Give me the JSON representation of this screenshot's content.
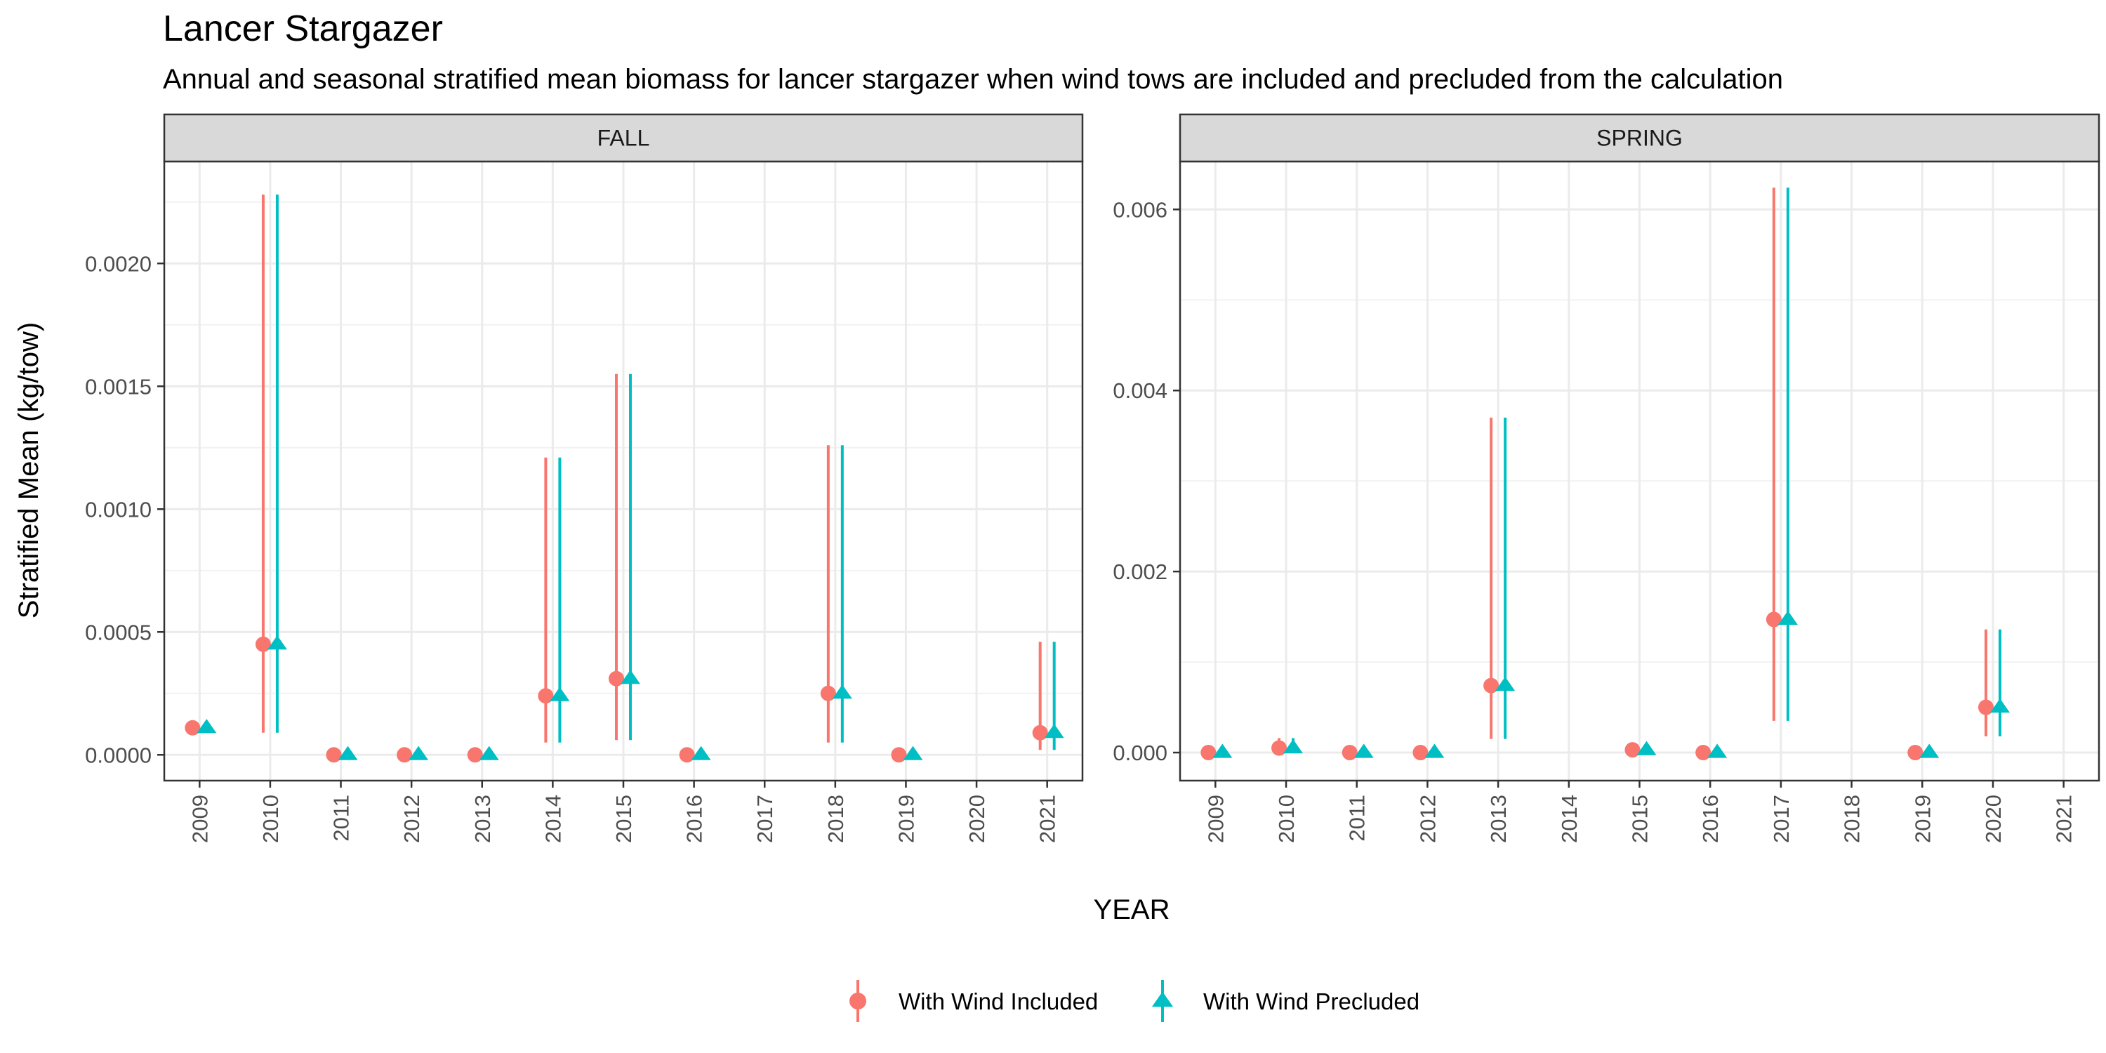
{
  "chart_data": {
    "type": "scatter",
    "title": "Lancer Stargazer",
    "subtitle": "Annual and seasonal stratified mean biomass for lancer stargazer when wind tows are included and precluded from the calculation",
    "xlabel": "YEAR",
    "ylabel": "Stratified Mean (kg/tow)",
    "legend": {
      "position": "bottom",
      "entries": [
        {
          "name": "With Wind Included",
          "color": "#F8766D",
          "shape": "circle"
        },
        {
          "name": "With Wind Precluded",
          "color": "#00BFC4",
          "shape": "triangle"
        }
      ]
    },
    "categories": [
      "2009",
      "2010",
      "2011",
      "2012",
      "2013",
      "2014",
      "2015",
      "2016",
      "2017",
      "2018",
      "2019",
      "2020",
      "2021"
    ],
    "panels": [
      {
        "label": "FALL",
        "ylim": [
          -0.000105,
          0.002415
        ],
        "yticks": [
          0,
          0.0005,
          0.001,
          0.0015,
          0.002
        ],
        "ytick_labels": [
          "0.0000",
          "0.0005",
          "0.0010",
          "0.0015",
          "0.0020"
        ],
        "series": [
          {
            "name": "With Wind Included",
            "points": [
              {
                "year": "2009",
                "value": 0.00011,
                "low": null,
                "high": null
              },
              {
                "year": "2010",
                "value": 0.00045,
                "low": 9e-05,
                "high": 0.00228
              },
              {
                "year": "2011",
                "value": 0.0,
                "low": null,
                "high": null
              },
              {
                "year": "2012",
                "value": 0.0,
                "low": null,
                "high": null
              },
              {
                "year": "2013",
                "value": 0.0,
                "low": null,
                "high": null
              },
              {
                "year": "2014",
                "value": 0.00024,
                "low": 5e-05,
                "high": 0.00121
              },
              {
                "year": "2015",
                "value": 0.00031,
                "low": 6e-05,
                "high": 0.00155
              },
              {
                "year": "2016",
                "value": 0.0,
                "low": null,
                "high": null
              },
              {
                "year": "2018",
                "value": 0.00025,
                "low": 5e-05,
                "high": 0.00126
              },
              {
                "year": "2019",
                "value": 0.0,
                "low": null,
                "high": null
              },
              {
                "year": "2021",
                "value": 9e-05,
                "low": 2e-05,
                "high": 0.00046
              }
            ]
          },
          {
            "name": "With Wind Precluded",
            "points": [
              {
                "year": "2009",
                "value": 0.00011,
                "low": null,
                "high": null
              },
              {
                "year": "2010",
                "value": 0.00045,
                "low": 9e-05,
                "high": 0.00228
              },
              {
                "year": "2011",
                "value": 0.0,
                "low": null,
                "high": null
              },
              {
                "year": "2012",
                "value": 0.0,
                "low": null,
                "high": null
              },
              {
                "year": "2013",
                "value": 0.0,
                "low": null,
                "high": null
              },
              {
                "year": "2014",
                "value": 0.00024,
                "low": 5e-05,
                "high": 0.00121
              },
              {
                "year": "2015",
                "value": 0.00031,
                "low": 6e-05,
                "high": 0.00155
              },
              {
                "year": "2016",
                "value": 0.0,
                "low": null,
                "high": null
              },
              {
                "year": "2018",
                "value": 0.00025,
                "low": 5e-05,
                "high": 0.00126
              },
              {
                "year": "2019",
                "value": 0.0,
                "low": null,
                "high": null
              },
              {
                "year": "2021",
                "value": 9e-05,
                "low": 2e-05,
                "high": 0.00046
              }
            ]
          }
        ]
      },
      {
        "label": "SPRING",
        "ylim": [
          -0.00031,
          0.00653
        ],
        "yticks": [
          0,
          0.002,
          0.004,
          0.006
        ],
        "ytick_labels": [
          "0.000",
          "0.002",
          "0.004",
          "0.006"
        ],
        "series": [
          {
            "name": "With Wind Included",
            "points": [
              {
                "year": "2009",
                "value": 0.0,
                "low": null,
                "high": null
              },
              {
                "year": "2010",
                "value": 5e-05,
                "low": 0.0,
                "high": 0.00016
              },
              {
                "year": "2011",
                "value": 0.0,
                "low": null,
                "high": null
              },
              {
                "year": "2012",
                "value": 0.0,
                "low": null,
                "high": null
              },
              {
                "year": "2013",
                "value": 0.00074,
                "low": 0.00015,
                "high": 0.0037
              },
              {
                "year": "2015",
                "value": 3e-05,
                "low": null,
                "high": null
              },
              {
                "year": "2016",
                "value": 0.0,
                "low": null,
                "high": null
              },
              {
                "year": "2017",
                "value": 0.00147,
                "low": 0.00035,
                "high": 0.00624
              },
              {
                "year": "2019",
                "value": 0.0,
                "low": null,
                "high": null
              },
              {
                "year": "2020",
                "value": 0.0005,
                "low": 0.00018,
                "high": 0.00136
              }
            ]
          },
          {
            "name": "With Wind Precluded",
            "points": [
              {
                "year": "2009",
                "value": 0.0,
                "low": null,
                "high": null
              },
              {
                "year": "2010",
                "value": 5e-05,
                "low": 0.0,
                "high": 0.00016
              },
              {
                "year": "2011",
                "value": 0.0,
                "low": null,
                "high": null
              },
              {
                "year": "2012",
                "value": 0.0,
                "low": null,
                "high": null
              },
              {
                "year": "2013",
                "value": 0.00074,
                "low": 0.00015,
                "high": 0.0037
              },
              {
                "year": "2015",
                "value": 3e-05,
                "low": null,
                "high": null
              },
              {
                "year": "2016",
                "value": 0.0,
                "low": null,
                "high": null
              },
              {
                "year": "2017",
                "value": 0.00147,
                "low": 0.00035,
                "high": 0.00624
              },
              {
                "year": "2019",
                "value": 0.0,
                "low": null,
                "high": null
              },
              {
                "year": "2020",
                "value": 0.0005,
                "low": 0.00018,
                "high": 0.00136
              }
            ]
          }
        ]
      }
    ]
  }
}
